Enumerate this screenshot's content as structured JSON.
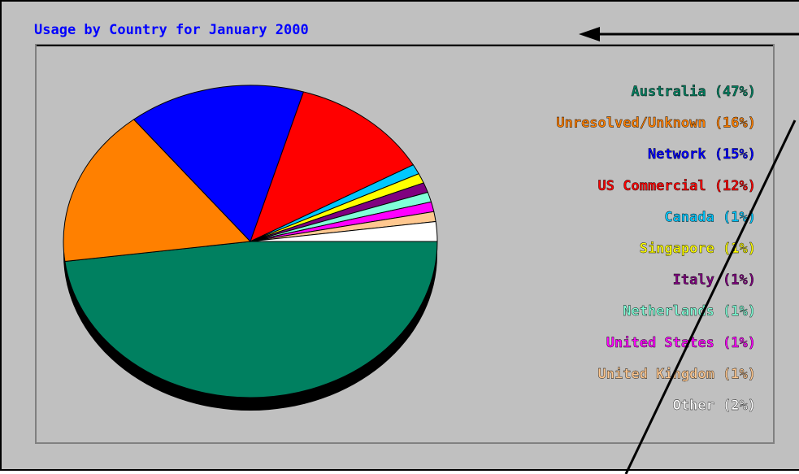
{
  "chart_data": {
    "type": "pie",
    "title": "Usage by Country for January 2000",
    "categories": [
      "Australia (47%)",
      "Unresolved/Unknown (16%)",
      "Network (15%)",
      "US Commercial (12%)",
      "Canada (1%)",
      "Singapore (1%)",
      "Italy (1%)",
      "Netherlands (1%)",
      "United States (1%)",
      "United Kingdom (1%)",
      "Other (2%)"
    ],
    "values": [
      47,
      16,
      15,
      12,
      1,
      1,
      1,
      1,
      1,
      1,
      2
    ],
    "colors": [
      "#008060",
      "#ff8000",
      "#0000ff",
      "#ff0000",
      "#00c8ff",
      "#ffff00",
      "#800080",
      "#80ffd8",
      "#ff00ff",
      "#ffc890",
      "#ffffff"
    ]
  }
}
